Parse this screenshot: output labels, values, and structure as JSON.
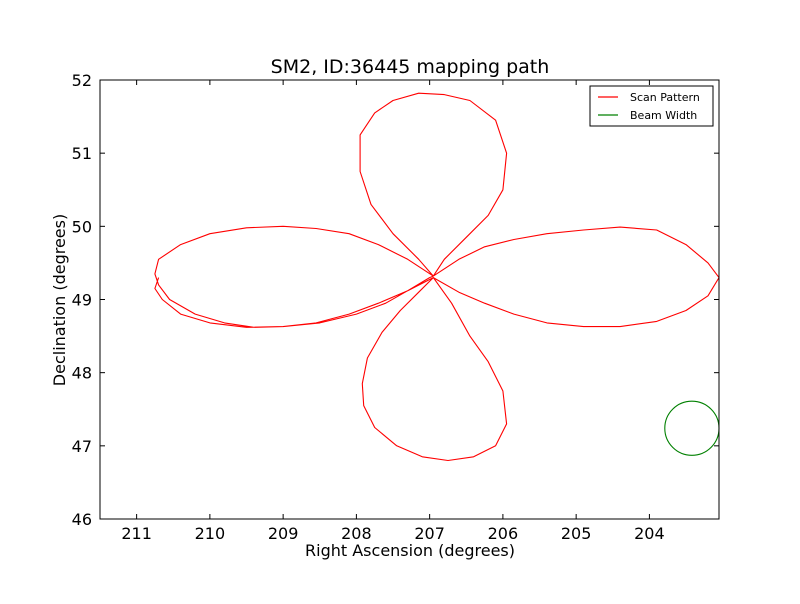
{
  "chart_data": {
    "type": "line",
    "title": "SM2, ID:36445 mapping path",
    "xlabel": "Right Ascension (degrees)",
    "ylabel": "Declination (degrees)",
    "xlim": [
      211.5,
      203.05
    ],
    "ylim": [
      46,
      52
    ],
    "x_inverted": true,
    "xticks": [
      211,
      210,
      209,
      208,
      207,
      206,
      205,
      204
    ],
    "yticks": [
      46,
      47,
      48,
      49,
      50,
      51,
      52
    ],
    "grid": false,
    "legend_position": "top-right",
    "series": [
      {
        "name": "Scan Pattern",
        "color": "#ff0000",
        "x": [
          206.95,
          207.3,
          207.7,
          208.1,
          208.55,
          209.0,
          209.5,
          210.0,
          210.4,
          210.7,
          210.75,
          210.7,
          210.55,
          210.2,
          209.8,
          209.4,
          209.0,
          208.5,
          208.0,
          207.6,
          207.3,
          207.0,
          206.95,
          207.15,
          207.5,
          207.8,
          207.95,
          207.95,
          207.75,
          207.5,
          207.15,
          206.8,
          206.45,
          206.1,
          205.95,
          206.0,
          206.2,
          206.5,
          206.8,
          206.95,
          206.6,
          206.25,
          205.85,
          205.4,
          204.9,
          204.4,
          203.9,
          203.5,
          203.2,
          203.05,
          203.2,
          203.5,
          203.9,
          204.4,
          204.9,
          205.4,
          205.85,
          206.25,
          206.6,
          206.95,
          207.15,
          207.4,
          207.65,
          207.85,
          207.92,
          207.9,
          207.75,
          207.45,
          207.1,
          206.75,
          206.4,
          206.1,
          205.95,
          206.0,
          206.2,
          206.45,
          206.7,
          206.95,
          207.3,
          207.7,
          208.1,
          208.55,
          209.0,
          209.5,
          210.0,
          210.4,
          210.65,
          210.75,
          210.7
        ],
        "y": [
          49.32,
          49.55,
          49.75,
          49.9,
          49.97,
          50.0,
          49.98,
          49.9,
          49.75,
          49.55,
          49.35,
          49.2,
          49.0,
          48.8,
          48.68,
          48.62,
          48.63,
          48.68,
          48.8,
          48.95,
          49.12,
          49.3,
          49.32,
          49.55,
          49.9,
          50.3,
          50.75,
          51.25,
          51.55,
          51.72,
          51.82,
          51.8,
          51.72,
          51.45,
          51.0,
          50.5,
          50.15,
          49.85,
          49.55,
          49.32,
          49.55,
          49.72,
          49.82,
          49.9,
          49.95,
          49.99,
          49.95,
          49.75,
          49.5,
          49.3,
          49.05,
          48.85,
          48.7,
          48.63,
          48.63,
          48.68,
          48.8,
          48.95,
          49.1,
          49.3,
          49.1,
          48.85,
          48.55,
          48.2,
          47.85,
          47.55,
          47.25,
          47.0,
          46.85,
          46.8,
          46.85,
          47.0,
          47.3,
          47.75,
          48.15,
          48.5,
          48.95,
          49.3,
          49.12,
          48.95,
          48.8,
          48.68,
          48.63,
          48.62,
          48.68,
          48.8,
          49.0,
          49.15,
          49.3
        ]
      },
      {
        "name": "Beam Width",
        "color": "#008000",
        "shape": "circle",
        "center": [
          203.42,
          47.24
        ],
        "radius_deg": 0.37
      }
    ]
  }
}
